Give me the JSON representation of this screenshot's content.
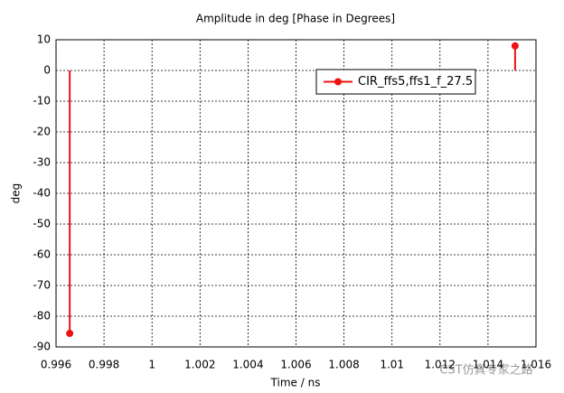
{
  "chart_data": {
    "type": "stem",
    "title": "Amplitude in deg [Phase in Degrees]",
    "xlabel": "Time / ns",
    "ylabel": "deg",
    "series": [
      {
        "name": "CIR_ffs5,ffs1_f_27.5",
        "color": "#ee1111",
        "x": [
          0.99657,
          1.01513
        ],
        "values": [
          -85.6,
          8
        ]
      }
    ],
    "xlim": [
      0.996,
      1.016
    ],
    "xticks": [
      0.996,
      0.998,
      1,
      1.002,
      1.004,
      1.006,
      1.008,
      1.01,
      1.012,
      1.014,
      1.016
    ],
    "ylim": [
      -90,
      10
    ],
    "yticks": [
      10,
      0,
      -10,
      -20,
      -30,
      -40,
      -50,
      -60,
      -70,
      -80,
      -90
    ],
    "grid": true,
    "legend": "upper right",
    "annotation": "CST仿真专家之路"
  }
}
